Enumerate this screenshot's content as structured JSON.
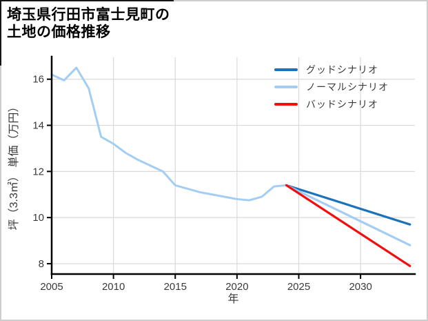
{
  "title": {
    "line1": "埼玉県行田市富士見町の",
    "line2": "土地の価格推移"
  },
  "chart_data": {
    "type": "line",
    "title": "埼玉県行田市富士見町の土地の価格推移",
    "xlabel": "年",
    "ylabel": "坪（3.3㎡） 単価（万円）",
    "xlim": [
      2005,
      2034.4
    ],
    "ylim": [
      7.55,
      16.95
    ],
    "x_ticks": [
      2005,
      2010,
      2015,
      2020,
      2025,
      2030
    ],
    "y_ticks": [
      8,
      10,
      12,
      14,
      16
    ],
    "grid": true,
    "grid_color": "#d9d9d9",
    "axis_color": "#000000",
    "tick_label_color": "#3a3a3a",
    "legend_position": "upper right",
    "series": [
      {
        "id": "history",
        "label": "",
        "in_legend": false,
        "color": "#a3cdf3",
        "width": 3,
        "x": [
          2005,
          2006,
          2007,
          2008,
          2009,
          2010,
          2011,
          2012,
          2013,
          2014,
          2015,
          2016,
          2017,
          2018,
          2019,
          2020,
          2021,
          2022,
          2023,
          2024
        ],
        "values": [
          16.2,
          15.95,
          16.5,
          15.6,
          13.5,
          13.2,
          12.8,
          12.5,
          12.25,
          12.0,
          11.4,
          11.25,
          11.1,
          11.0,
          10.9,
          10.8,
          10.75,
          10.9,
          11.35,
          11.4
        ]
      },
      {
        "id": "good-scenario",
        "label": "グッドシナリオ",
        "in_legend": true,
        "color": "#1b72ba",
        "width": 3.2,
        "x": [
          2024,
          2034
        ],
        "values": [
          11.4,
          9.7
        ]
      },
      {
        "id": "normal-scenario",
        "label": "ノーマルシナリオ",
        "in_legend": true,
        "color": "#a3cdf3",
        "width": 3.2,
        "x": [
          2024,
          2034
        ],
        "values": [
          11.4,
          8.8
        ]
      },
      {
        "id": "bad-scenario",
        "label": "バッドシナリオ",
        "in_legend": true,
        "color": "#f30e0e",
        "width": 3.2,
        "x": [
          2024,
          2034
        ],
        "values": [
          11.4,
          7.9
        ]
      }
    ]
  }
}
